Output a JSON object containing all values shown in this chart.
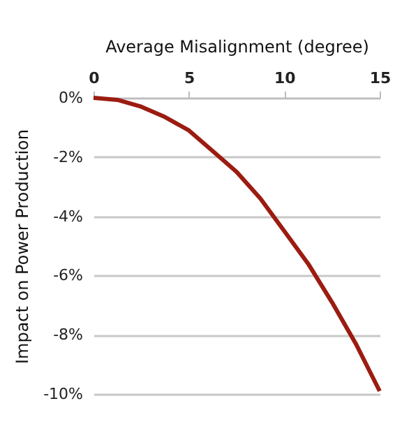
{
  "chart_data": {
    "type": "line",
    "xlabel": "Average Misalignment (degree)",
    "ylabel": "Impact on Power Production",
    "x": [
      0,
      1.25,
      2.5,
      3.75,
      5,
      6.25,
      7.5,
      8.75,
      10,
      11.25,
      12.5,
      13.75,
      15
    ],
    "series": [
      {
        "color": "#9b1c10",
        "values": [
          0,
          -0.07,
          -0.3,
          -0.65,
          -1.1,
          -1.8,
          -2.5,
          -3.4,
          -4.5,
          -5.6,
          -6.9,
          -8.3,
          -9.9
        ]
      }
    ],
    "xlim": [
      0,
      15
    ],
    "xticks": [
      0,
      5,
      10,
      15
    ],
    "ylim": [
      -10,
      0
    ],
    "yticks": [
      {
        "value": 0,
        "label": "0%"
      },
      {
        "value": -2,
        "label": "-2%"
      },
      {
        "value": -4,
        "label": "-4%"
      },
      {
        "value": -6,
        "label": "-6%"
      },
      {
        "value": -8,
        "label": "-8%"
      },
      {
        "value": -10,
        "label": "-10%"
      }
    ],
    "grid": "y",
    "line_style": "solid",
    "marker": "none"
  }
}
